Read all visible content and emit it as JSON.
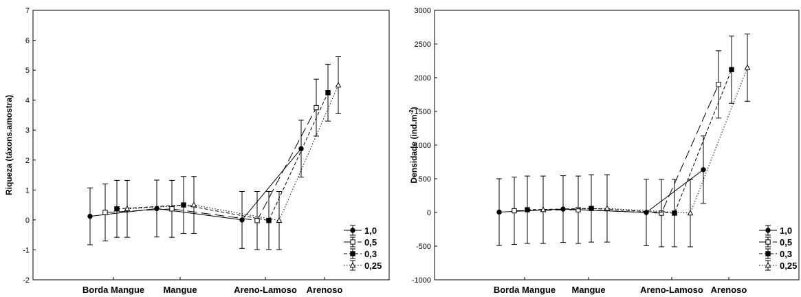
{
  "chart_data": [
    {
      "type": "line",
      "ylabel": "Riqueza (táxons.amostra)",
      "ylim": [
        -2,
        7
      ],
      "yticks": [
        "7",
        "6",
        "5",
        "4",
        "3",
        "2",
        "1",
        "0",
        "-1",
        "-2"
      ],
      "categories": [
        "Borda Mangue",
        "Mangue",
        "Areno-Lamoso",
        "Arenoso"
      ],
      "legend_position": "bottom-right",
      "series": [
        {
          "name": "1,0",
          "marker": "circle-filled",
          "dash": "solid",
          "values": [
            0.12,
            0.38,
            0.0,
            2.38
          ],
          "errors": [
            0.95,
            0.95,
            0.95,
            0.95
          ]
        },
        {
          "name": "0,5",
          "marker": "square-open",
          "dash": "long-dash",
          "values": [
            0.25,
            0.37,
            -0.02,
            3.75
          ],
          "errors": [
            0.95,
            0.95,
            0.97,
            0.95
          ]
        },
        {
          "name": "0,3",
          "marker": "square-filled",
          "dash": "short-dash",
          "values": [
            0.37,
            0.5,
            -0.02,
            4.25
          ],
          "errors": [
            0.95,
            0.95,
            0.97,
            0.95
          ]
        },
        {
          "name": "0,25",
          "marker": "triangle-open",
          "dash": "dotted",
          "values": [
            0.37,
            0.5,
            -0.02,
            4.5
          ],
          "errors": [
            0.95,
            0.95,
            0.97,
            0.95
          ]
        }
      ]
    },
    {
      "type": "line",
      "ylabel": "Densidade (ind.m",
      "ylabel_sup": "-2",
      "ylabel_tail": ")",
      "ylim": [
        -1000,
        3000
      ],
      "yticks": [
        "3000",
        "2500",
        "2000",
        "1500",
        "1000",
        "500",
        "0",
        "-500",
        "-1000"
      ],
      "categories": [
        "Borda Mangue",
        "Mangue",
        "Areno-Lamoso",
        "Arenoso"
      ],
      "legend_position": "bottom-right",
      "series": [
        {
          "name": "1,0",
          "marker": "circle-filled",
          "dash": "solid",
          "values": [
            5,
            50,
            0,
            635
          ],
          "errors": [
            495,
            495,
            495,
            500
          ]
        },
        {
          "name": "0,5",
          "marker": "square-open",
          "dash": "long-dash",
          "values": [
            25,
            40,
            -10,
            1900
          ],
          "errors": [
            500,
            500,
            500,
            500
          ]
        },
        {
          "name": "0,3",
          "marker": "square-filled",
          "dash": "short-dash",
          "values": [
            40,
            60,
            -10,
            2120
          ],
          "errors": [
            500,
            500,
            500,
            500
          ]
        },
        {
          "name": "0,25",
          "marker": "triangle-open",
          "dash": "dotted",
          "values": [
            40,
            60,
            -10,
            2150
          ],
          "errors": [
            500,
            500,
            500,
            500
          ]
        }
      ]
    }
  ]
}
